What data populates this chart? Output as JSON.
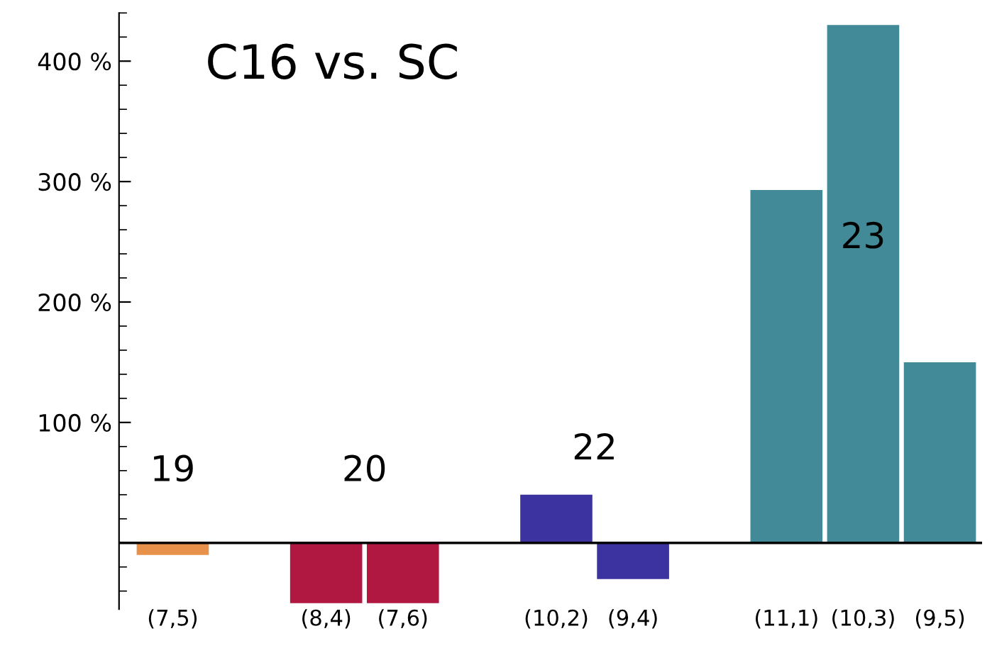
{
  "chart_data": {
    "type": "bar",
    "title": "C16 vs. SC",
    "categories": [
      "(7,5)",
      null,
      "(8,4)",
      "(7,6)",
      null,
      "(10,2)",
      "(9,4)",
      null,
      "(11,1)",
      "(10,3)",
      "(9,5)"
    ],
    "values": [
      -10,
      null,
      -50,
      -50,
      null,
      40,
      -30,
      null,
      293,
      430,
      150
    ],
    "colors": [
      "#e8914a",
      null,
      "#b01842",
      "#b01842",
      null,
      "#3d33a0",
      "#3d33a0",
      null,
      "#428a98",
      "#428a98",
      "#428a98"
    ],
    "ylim": [
      -55,
      440
    ],
    "yticks": [
      {
        "value": 100,
        "label": "100 %"
      },
      {
        "value": 200,
        "label": "200 %"
      },
      {
        "value": 300,
        "label": "300 %"
      },
      {
        "value": 400,
        "label": "400 %"
      }
    ],
    "annotations": [
      "19",
      "20",
      "22",
      "23"
    ]
  }
}
